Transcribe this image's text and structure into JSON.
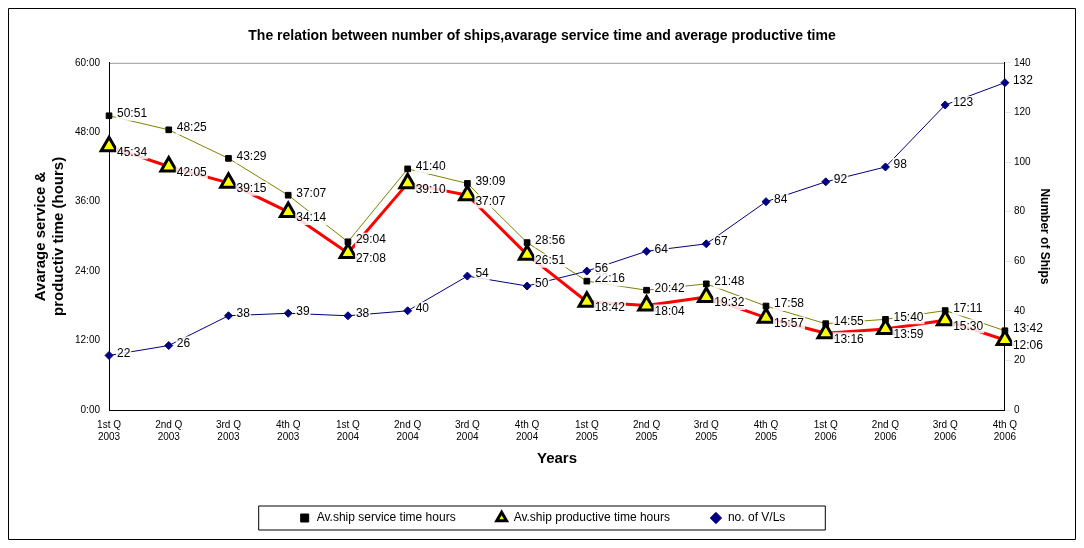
{
  "chart_data": {
    "type": "line",
    "title": "The relation between number of ships,avarage service time and average productive time",
    "xlabel": "Years",
    "ylabel": "Avarage service &\nproductiv time (hours)",
    "y2label": "Number of Ships",
    "categories": [
      "1st Q\n2003",
      "2nd Q\n2003",
      "3rd Q\n2003",
      "4th Q\n2003",
      "1st Q\n2004",
      "2nd Q\n2004",
      "3rd Q\n2004",
      "4th Q\n2004",
      "1st Q\n2005",
      "2nd Q\n2005",
      "3rd Q\n2005",
      "4th Q\n2005",
      "1st Q\n2006",
      "2nd Q\n2006",
      "3rd Q\n2006",
      "4th Q\n2006"
    ],
    "series": [
      {
        "name": "Av.ship service time hours",
        "color": "#808000",
        "marker": "square",
        "values": [
          50.85,
          48.417,
          43.483,
          37.117,
          29.067,
          41.667,
          39.15,
          28.933,
          22.267,
          20.7,
          21.8,
          17.967,
          14.917,
          15.667,
          17.183,
          13.7
        ],
        "value_labels": [
          "50:51",
          "48:25",
          "43:29",
          "37:07",
          "29:04",
          "41:40",
          "39:09",
          "28:56",
          "22:16",
          "20:42",
          "21:48",
          "17:58",
          "14:55",
          "15:40",
          "17:11",
          "13:42"
        ]
      },
      {
        "name": "Av.ship productive time hours",
        "color": "#ff0000",
        "marker": "triangle",
        "values": [
          45.567,
          42.083,
          39.25,
          34.233,
          27.133,
          39.167,
          37.117,
          26.85,
          18.7,
          18.067,
          19.533,
          15.95,
          13.267,
          13.983,
          15.5,
          12.1
        ],
        "value_labels": [
          "45:34",
          "42:05",
          "39:15",
          "34:14",
          "27:08",
          "39:10",
          "37:07",
          "26:51",
          "18:42",
          "18:04",
          "19:32",
          "15:57",
          "13:16",
          "13:59",
          "15:30",
          "12:06"
        ]
      },
      {
        "name": "no. of V/Ls",
        "color": "#000080",
        "marker": "diamond",
        "axis": "y2",
        "values": [
          22,
          26,
          38,
          39,
          38,
          40,
          54,
          50,
          56,
          64,
          67,
          84,
          92,
          98,
          123,
          132
        ],
        "value_labels": [
          "22",
          "26",
          "38",
          "39",
          "38",
          "40",
          "54",
          "50",
          "56",
          "64",
          "67",
          "84",
          "92",
          "98",
          "123",
          "132"
        ]
      }
    ],
    "ylim": [
      0,
      60
    ],
    "yticks": [
      {
        "value": 0,
        "label": "0:00"
      },
      {
        "value": 12,
        "label": "12:00"
      },
      {
        "value": 24,
        "label": "24:00"
      },
      {
        "value": 36,
        "label": "36:00"
      },
      {
        "value": 48,
        "label": "48:00"
      },
      {
        "value": 60,
        "label": "60:00"
      }
    ],
    "y2lim": [
      0,
      140
    ],
    "y2ticks": [
      0,
      20,
      40,
      60,
      80,
      100,
      120,
      140
    ],
    "grid": false,
    "legend": "bottom"
  }
}
